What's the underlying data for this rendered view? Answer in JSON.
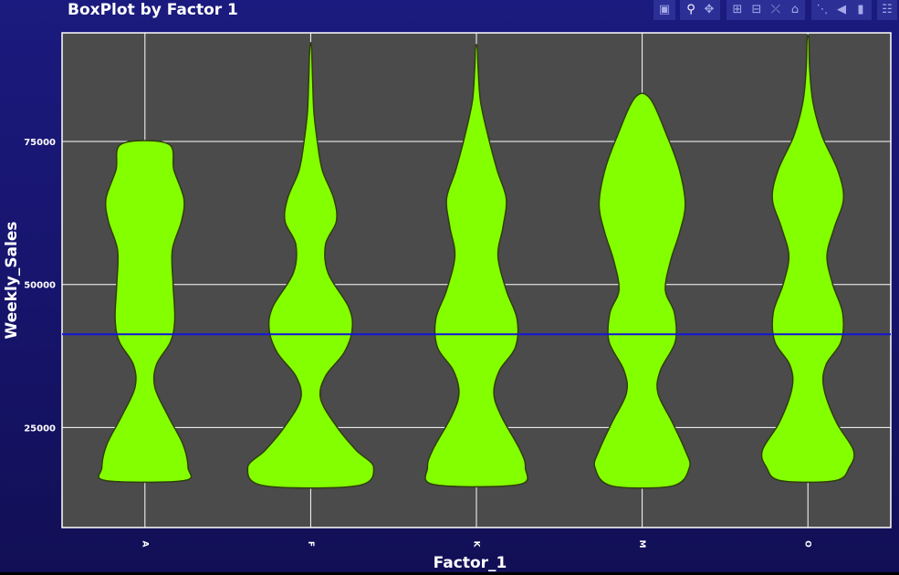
{
  "chart_data": {
    "type": "violin",
    "title": "BoxPlot by Factor 1",
    "xlabel": "Factor_1",
    "ylabel": "Weekly_Sales",
    "categories": [
      "A",
      "F",
      "K",
      "M",
      "O"
    ],
    "ylim": [
      7500,
      94000
    ],
    "yticks": [
      25000,
      50000,
      75000
    ],
    "ytick_labels": [
      "25000",
      "50000",
      "75000"
    ],
    "reference_line": 41300,
    "violins": [
      {
        "category": "A",
        "min": 15700,
        "max": 74600,
        "profile": [
          [
            15700,
            0.47
          ],
          [
            18000,
            0.52
          ],
          [
            22000,
            0.46
          ],
          [
            27000,
            0.28
          ],
          [
            32000,
            0.12
          ],
          [
            36000,
            0.14
          ],
          [
            40000,
            0.31
          ],
          [
            44000,
            0.36
          ],
          [
            50000,
            0.34
          ],
          [
            56000,
            0.33
          ],
          [
            61000,
            0.44
          ],
          [
            65000,
            0.47
          ],
          [
            70000,
            0.35
          ],
          [
            74600,
            0.28
          ]
        ]
      },
      {
        "category": "F",
        "min": 14800,
        "max": 91500,
        "profile": [
          [
            14800,
            0.56
          ],
          [
            18000,
            0.76
          ],
          [
            21000,
            0.55
          ],
          [
            25000,
            0.32
          ],
          [
            30000,
            0.12
          ],
          [
            34000,
            0.18
          ],
          [
            38000,
            0.4
          ],
          [
            42000,
            0.5
          ],
          [
            46000,
            0.46
          ],
          [
            52000,
            0.21
          ],
          [
            57000,
            0.18
          ],
          [
            61000,
            0.31
          ],
          [
            65000,
            0.28
          ],
          [
            70000,
            0.14
          ],
          [
            75000,
            0.08
          ],
          [
            80000,
            0.04
          ],
          [
            85000,
            0.025
          ],
          [
            91500,
            0.01
          ]
        ]
      },
      {
        "category": "K",
        "min": 15000,
        "max": 91500,
        "profile": [
          [
            15000,
            0.51
          ],
          [
            18000,
            0.59
          ],
          [
            21000,
            0.53
          ],
          [
            27000,
            0.3
          ],
          [
            31000,
            0.21
          ],
          [
            35000,
            0.28
          ],
          [
            39000,
            0.47
          ],
          [
            44000,
            0.49
          ],
          [
            49000,
            0.36
          ],
          [
            55000,
            0.26
          ],
          [
            60000,
            0.32
          ],
          [
            65000,
            0.36
          ],
          [
            70000,
            0.25
          ],
          [
            76000,
            0.14
          ],
          [
            82000,
            0.05
          ],
          [
            88000,
            0.02
          ],
          [
            91500,
            0.01
          ]
        ]
      },
      {
        "category": "M",
        "min": 14800,
        "max": 82600,
        "profile": [
          [
            14800,
            0.37
          ],
          [
            18000,
            0.57
          ],
          [
            21000,
            0.52
          ],
          [
            26000,
            0.36
          ],
          [
            31000,
            0.19
          ],
          [
            35000,
            0.22
          ],
          [
            40000,
            0.4
          ],
          [
            45000,
            0.39
          ],
          [
            49000,
            0.28
          ],
          [
            54000,
            0.34
          ],
          [
            59000,
            0.45
          ],
          [
            64000,
            0.52
          ],
          [
            70000,
            0.45
          ],
          [
            76000,
            0.3
          ],
          [
            82600,
            0.09
          ]
        ]
      },
      {
        "category": "O",
        "min": 15700,
        "max": 93000,
        "profile": [
          [
            15700,
            0.33
          ],
          [
            18000,
            0.5
          ],
          [
            21000,
            0.55
          ],
          [
            26000,
            0.34
          ],
          [
            32000,
            0.19
          ],
          [
            36000,
            0.22
          ],
          [
            40000,
            0.4
          ],
          [
            45000,
            0.42
          ],
          [
            50000,
            0.3
          ],
          [
            55000,
            0.23
          ],
          [
            60000,
            0.32
          ],
          [
            65000,
            0.43
          ],
          [
            70000,
            0.36
          ],
          [
            76000,
            0.17
          ],
          [
            82000,
            0.06
          ],
          [
            88000,
            0.02
          ],
          [
            93000,
            0.01
          ]
        ]
      }
    ],
    "colors": {
      "plot_bg": "#4b4b4b",
      "violin_fill": "#84ff00",
      "violin_line": "#2f3d10",
      "grid": "#ffffff",
      "reference_line": "#1515d8",
      "text": "#ffffff"
    },
    "grid": true,
    "legend": "none"
  },
  "modebar": {
    "icons": [
      "camera-icon",
      "zoom-icon",
      "pan-icon",
      "zoom-in-icon",
      "zoom-out-icon",
      "autoscale-icon",
      "home-icon",
      "spike-lines-icon",
      "hover-closest-icon",
      "hover-compare-icon",
      "plotly-logo-icon"
    ]
  }
}
